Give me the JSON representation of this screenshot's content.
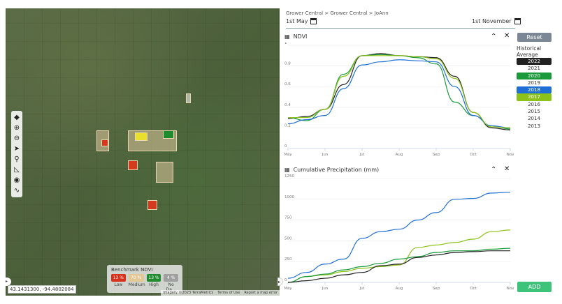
{
  "map": {
    "coordinates": "43.1431300, -94.4802084",
    "attribution": [
      "Imagery ©2023 TerraMetrics",
      "Terms of Use",
      "Report a map error"
    ],
    "tools": [
      "layers-icon",
      "zoom-in-icon",
      "zoom-out-icon",
      "locate-icon",
      "search-icon",
      "measure-icon",
      "target-icon",
      "draw-icon"
    ],
    "benchmark": {
      "title": "Benchmark NDVI",
      "items": [
        {
          "value": "13 %",
          "label": "Low",
          "color": "#d9301c"
        },
        {
          "value": "70 %",
          "label": "Medium",
          "color": "#e3c896"
        },
        {
          "value": "13 %",
          "label": "High",
          "color": "#1f8a2e"
        },
        {
          "value": "4 %",
          "label": "No Da...",
          "color": "#a0a0a0"
        }
      ]
    }
  },
  "breadcrumb": "Grower Central > Grower Central > JoAnn",
  "start_date": "1st May",
  "end_date": "1st November",
  "reset_label": "Reset",
  "historical_label": "Historical Average",
  "add_label": "ADD",
  "years": [
    {
      "year": "2022",
      "color": "#222222",
      "active": true
    },
    {
      "year": "2021",
      "active": false
    },
    {
      "year": "2020",
      "color": "#1a9a3a",
      "active": true
    },
    {
      "year": "2019",
      "active": false
    },
    {
      "year": "2018",
      "color": "#1f6fd6",
      "active": true
    },
    {
      "year": "2017",
      "color": "#8cc21a",
      "active": true
    },
    {
      "year": "2016",
      "active": false
    },
    {
      "year": "2015",
      "active": false
    },
    {
      "year": "2014",
      "active": false
    },
    {
      "year": "2013",
      "active": false
    }
  ],
  "chart_data": [
    {
      "type": "line",
      "title": "NDVI",
      "x_ticks": [
        "May",
        "Jun",
        "Jul",
        "Aug",
        "Sep",
        "Oct",
        "Nov"
      ],
      "y_ticks": [
        "0",
        "0.2",
        "0.4",
        "0.6",
        "0.8",
        "1"
      ],
      "ylim": [
        0,
        1
      ],
      "x": [
        0,
        0.5,
        1,
        1.5,
        2,
        2.5,
        3,
        3.5,
        4,
        4.5,
        5,
        5.5,
        6
      ],
      "series": [
        {
          "name": "2022",
          "color": "#222222",
          "values": [
            0.29,
            0.31,
            0.38,
            0.62,
            0.9,
            0.92,
            0.9,
            0.89,
            0.88,
            0.7,
            0.35,
            0.2,
            0.18
          ]
        },
        {
          "name": "2020",
          "color": "#1a9a3a",
          "values": [
            0.3,
            0.27,
            0.38,
            0.72,
            0.9,
            0.91,
            0.9,
            0.88,
            0.82,
            0.45,
            0.32,
            0.22,
            0.19
          ]
        },
        {
          "name": "2018",
          "color": "#1f6fd6",
          "values": [
            0.24,
            0.28,
            0.32,
            0.58,
            0.81,
            0.84,
            0.86,
            0.85,
            0.84,
            0.6,
            0.32,
            0.22,
            0.2
          ]
        },
        {
          "name": "2017",
          "color": "#8cc21a",
          "values": [
            0.3,
            0.3,
            0.38,
            0.7,
            0.9,
            0.9,
            0.9,
            0.89,
            0.87,
            0.68,
            0.35,
            0.21,
            0.2
          ]
        }
      ]
    },
    {
      "type": "line",
      "title": "Cumulative Precipitation (mm)",
      "x_ticks": [
        "May",
        "Jun",
        "Jul",
        "Aug",
        "Sep",
        "Oct",
        "Nov"
      ],
      "y_ticks": [
        "0",
        "250",
        "500",
        "750",
        "1000",
        "1250"
      ],
      "ylim": [
        0,
        1250
      ],
      "x": [
        0,
        0.5,
        1,
        1.5,
        2,
        2.5,
        3,
        3.5,
        4,
        4.5,
        5,
        5.5,
        6
      ],
      "series": [
        {
          "name": "2018",
          "color": "#1f6fd6",
          "values": [
            50,
            120,
            220,
            280,
            530,
            610,
            640,
            750,
            840,
            1000,
            1010,
            1075,
            1085
          ]
        },
        {
          "name": "2017",
          "color": "#8cc21a",
          "values": [
            0,
            70,
            90,
            130,
            170,
            190,
            210,
            420,
            450,
            480,
            520,
            610,
            630
          ]
        },
        {
          "name": "2020",
          "color": "#1a9a3a",
          "values": [
            0,
            70,
            100,
            150,
            190,
            230,
            280,
            310,
            360,
            380,
            380,
            400,
            410
          ]
        },
        {
          "name": "2022",
          "color": "#222222",
          "values": [
            0,
            20,
            50,
            90,
            120,
            200,
            220,
            300,
            330,
            360,
            370,
            380,
            380
          ]
        }
      ]
    }
  ]
}
